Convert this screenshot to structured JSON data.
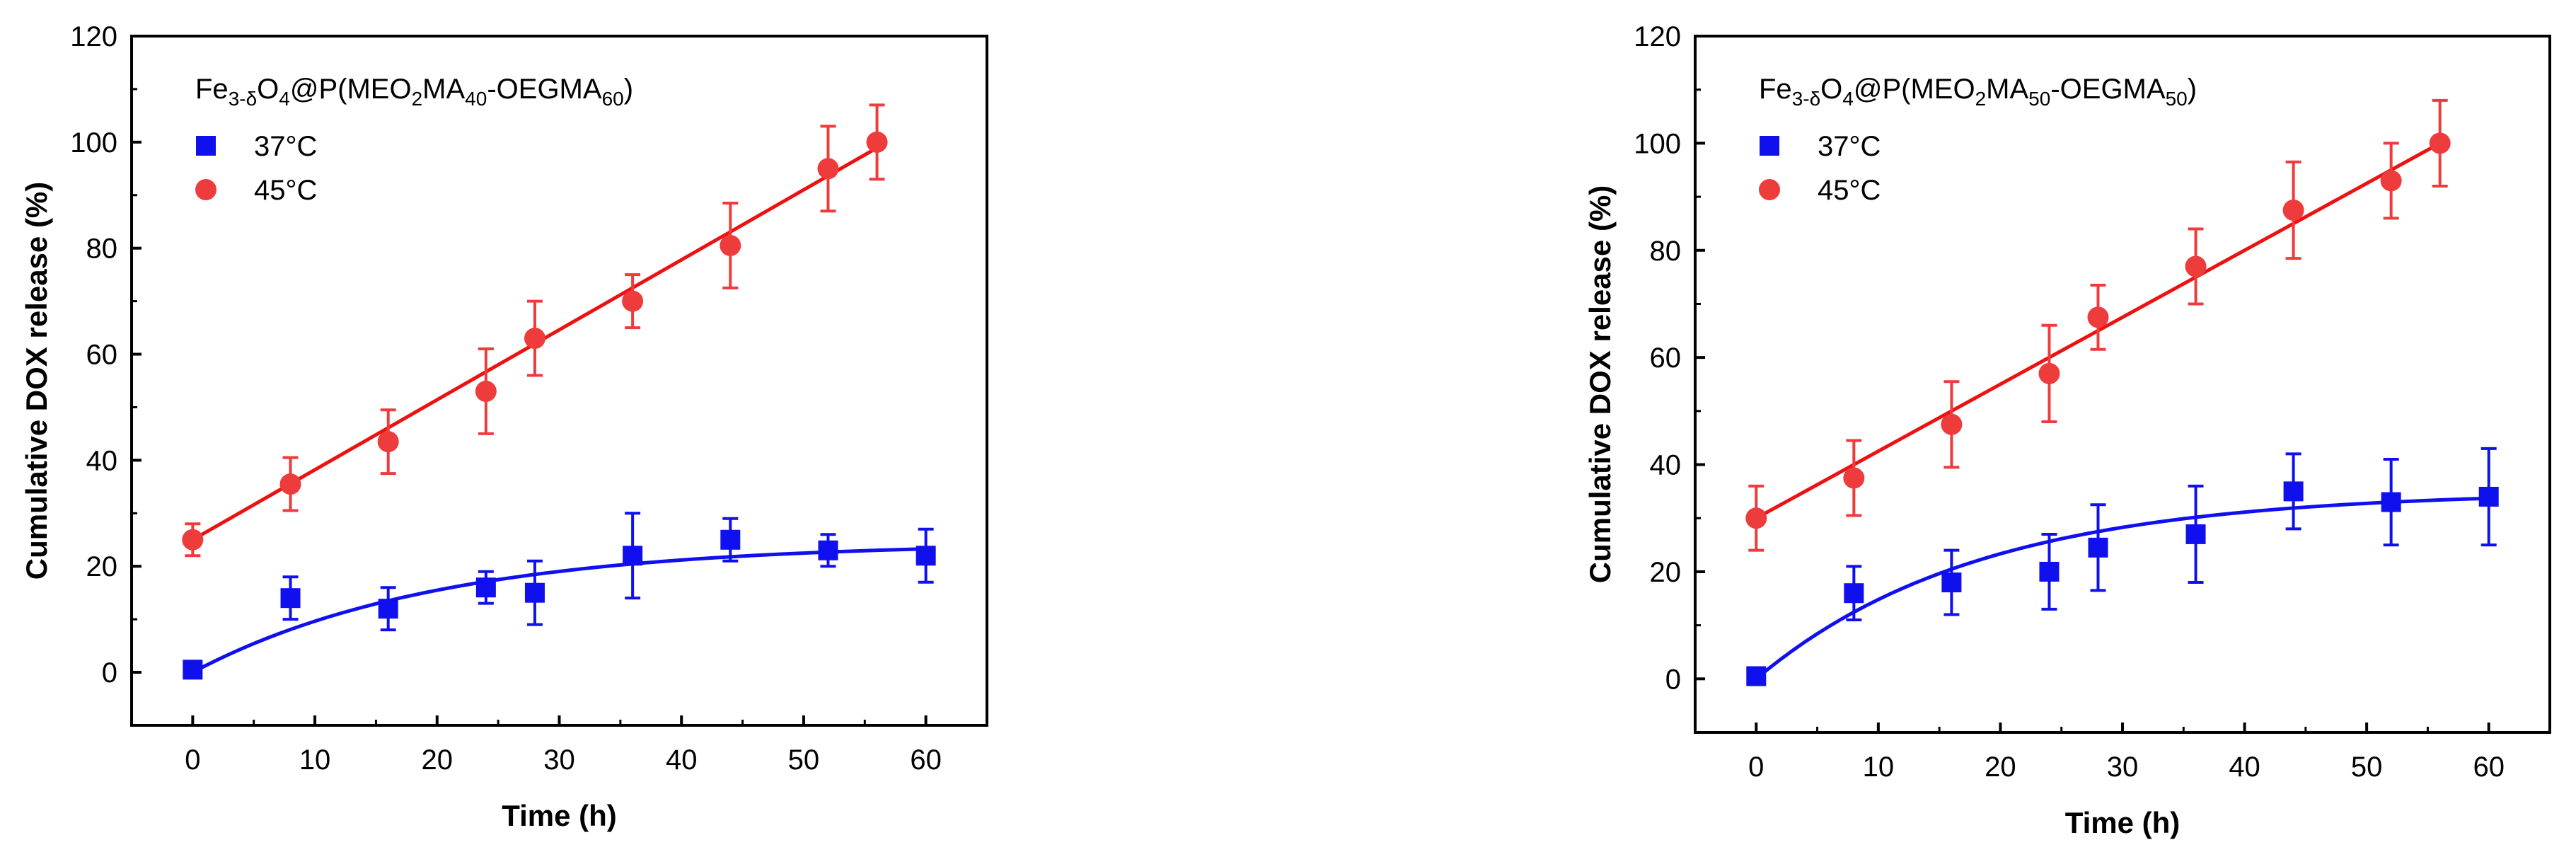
{
  "chart_data": [
    {
      "type": "scatter",
      "title_parts": [
        {
          "t": "Fe",
          "s": "n"
        },
        {
          "t": "3-δ",
          "s": "sub"
        },
        {
          "t": "O",
          "s": "n"
        },
        {
          "t": "4",
          "s": "sub"
        },
        {
          "t": "@P(MEO",
          "s": "n"
        },
        {
          "t": "2",
          "s": "sub"
        },
        {
          "t": "MA",
          "s": "n"
        },
        {
          "t": "40",
          "s": "sub"
        },
        {
          "t": "-OEGMA",
          "s": "n"
        },
        {
          "t": "60",
          "s": "sub"
        },
        {
          "t": ")",
          "s": "n"
        }
      ],
      "xlabel": "Time (h)",
      "ylabel": "Cumulative DOX release (%)",
      "xlim": [
        -5,
        65
      ],
      "ylim": [
        -10,
        120
      ],
      "xticks": [
        0,
        10,
        20,
        30,
        40,
        50,
        60
      ],
      "yticks": [
        0,
        20,
        40,
        60,
        80,
        100,
        120
      ],
      "legend_position": "top-left",
      "series": [
        {
          "name": "37°C",
          "marker": "square",
          "color": "#1010ee",
          "x": [
            0,
            8,
            16,
            24,
            28,
            36,
            44,
            52,
            60
          ],
          "y": [
            0.5,
            14,
            12,
            16,
            15,
            22,
            25,
            23,
            22
          ],
          "err": [
            0,
            4,
            4,
            3,
            6,
            8,
            4,
            3,
            5
          ],
          "fit": {
            "kind": "exp",
            "a": 24.5,
            "k": 0.05
          }
        },
        {
          "name": "45°C",
          "marker": "circle",
          "color": "#ee3b3b",
          "x": [
            0,
            8,
            16,
            24,
            28,
            36,
            44,
            52,
            56
          ],
          "y": [
            25,
            35.5,
            43.5,
            53,
            63,
            70,
            80.5,
            95,
            100
          ],
          "err": [
            3,
            5,
            6,
            8,
            7,
            5,
            8,
            8,
            7
          ],
          "fit": {
            "kind": "linear",
            "slope": 1.32,
            "intercept": 25,
            "x0": 0,
            "x1": 56
          },
          "fit_color": "#ee1111"
        }
      ]
    },
    {
      "type": "scatter",
      "title_parts": [
        {
          "t": "Fe",
          "s": "n"
        },
        {
          "t": "3-δ",
          "s": "sub"
        },
        {
          "t": "O",
          "s": "n"
        },
        {
          "t": "4",
          "s": "sub"
        },
        {
          "t": "@P(MEO",
          "s": "n"
        },
        {
          "t": "2",
          "s": "sub"
        },
        {
          "t": "MA",
          "s": "n"
        },
        {
          "t": "50",
          "s": "sub"
        },
        {
          "t": "-OEGMA",
          "s": "n"
        },
        {
          "t": "50",
          "s": "sub"
        },
        {
          "t": ")",
          "s": "n"
        }
      ],
      "xlabel": "Time (h)",
      "ylabel": "Cumulative DOX release (%)",
      "xlim": [
        -5,
        65
      ],
      "ylim": [
        -10,
        120
      ],
      "xticks": [
        0,
        10,
        20,
        30,
        40,
        50,
        60
      ],
      "yticks": [
        0,
        20,
        40,
        60,
        80,
        100,
        120
      ],
      "legend_position": "top-left",
      "series": [
        {
          "name": "37°C",
          "marker": "square",
          "color": "#1010ee",
          "x": [
            0,
            8,
            16,
            24,
            28,
            36,
            44,
            52,
            60
          ],
          "y": [
            0.5,
            16,
            18,
            20,
            24.5,
            27,
            35,
            33,
            34
          ],
          "err": [
            0,
            5,
            6,
            7,
            8,
            9,
            7,
            8,
            9
          ],
          "fit": {
            "kind": "exp",
            "a": 35,
            "k": 0.055
          }
        },
        {
          "name": "45°C",
          "marker": "circle",
          "color": "#ee3b3b",
          "x": [
            0,
            8,
            16,
            24,
            28,
            36,
            44,
            52,
            56
          ],
          "y": [
            30,
            37.5,
            47.5,
            57,
            67.5,
            77,
            87.5,
            93,
            100
          ],
          "err": [
            6,
            7,
            8,
            9,
            6,
            7,
            9,
            7,
            8
          ],
          "fit": {
            "kind": "linear",
            "slope": 1.25,
            "intercept": 30,
            "x0": 0,
            "x1": 56
          },
          "fit_color": "#ee1111"
        }
      ]
    }
  ]
}
